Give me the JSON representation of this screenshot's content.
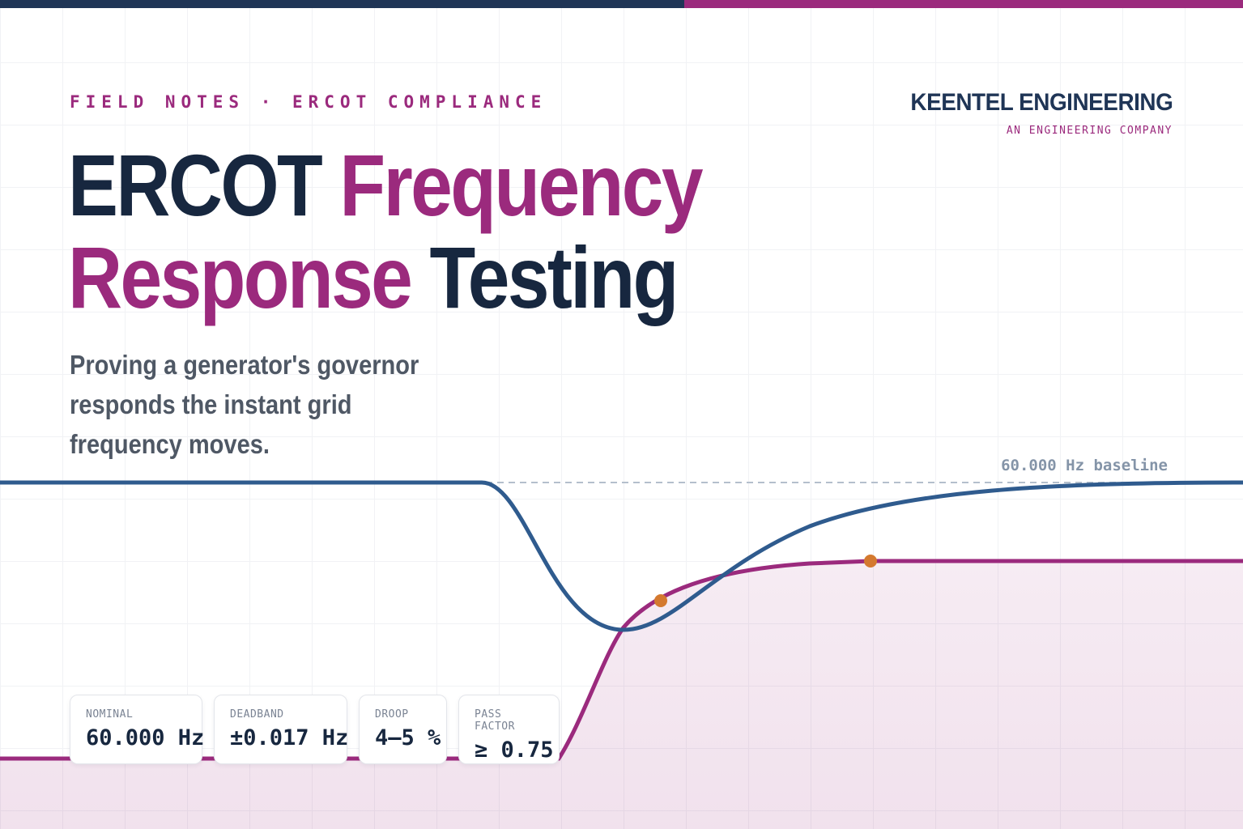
{
  "eyebrow": "FIELD NOTES · ERCOT COMPLIANCE",
  "brand": {
    "name": "KEENTEL ENGINEERING",
    "tagline": "AN ENGINEERING COMPANY"
  },
  "headline": {
    "line1_dark": "ERCOT ",
    "line1_accent": "Frequency",
    "line2_accent": "Response",
    "line2_dark": " Testing"
  },
  "subtitle": "Proving a generator's governor responds the instant grid frequency moves.",
  "baseline_label": "60.000 Hz baseline",
  "stats": [
    {
      "label": "NOMINAL",
      "value": "60.000 Hz"
    },
    {
      "label": "DEADBAND",
      "value": "±0.017 Hz"
    },
    {
      "label": "DROOP",
      "value": "4–5 %"
    },
    {
      "label": "PASS FACTOR",
      "value": "≥ 0.75"
    }
  ],
  "colors": {
    "navy": "#1f3556",
    "frequency_line": "#2f5b8e",
    "magenta": "#9b2a7d",
    "marker": "#d4792f"
  }
}
